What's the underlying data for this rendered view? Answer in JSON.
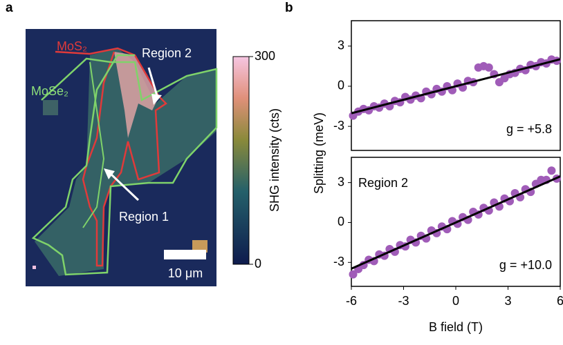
{
  "chart_data": [
    {
      "type": "image",
      "panel_label": "a",
      "annotations": {
        "mos2": "MoS₂",
        "mose2": "MoSe₂",
        "region2": "Region 2",
        "region1": "Region 1",
        "scalebar": "10 μm"
      },
      "colorbar": {
        "label": "SHG intensity (cts)",
        "lim": [
          0,
          300
        ],
        "ticks": [
          0,
          300
        ]
      }
    },
    {
      "type": "scatter",
      "panel_label": "b",
      "color": "#a05cb8",
      "xlim": [
        -6,
        6
      ],
      "ylim": [
        -4.8,
        4.9
      ],
      "yticks": [
        -3,
        0,
        3
      ],
      "annotation": "g = +5.8",
      "x": [
        -5.9,
        -5.6,
        -5.3,
        -5.0,
        -4.7,
        -4.4,
        -4.1,
        -3.8,
        -3.5,
        -3.2,
        -2.9,
        -2.6,
        -2.3,
        -2.0,
        -1.7,
        -1.4,
        -1.1,
        -0.8,
        -0.5,
        -0.2,
        0.1,
        0.4,
        0.7,
        1.0,
        1.3,
        1.6,
        1.9,
        2.2,
        2.5,
        2.8,
        3.1,
        3.4,
        3.7,
        4.0,
        4.3,
        4.6,
        4.9,
        5.2,
        5.5,
        5.8
      ],
      "values": [
        -2.2,
        -1.9,
        -1.7,
        -1.8,
        -1.5,
        -1.6,
        -1.3,
        -1.5,
        -1.1,
        -1.2,
        -0.8,
        -1.0,
        -0.7,
        -0.9,
        -0.4,
        -0.6,
        -0.2,
        -0.4,
        0.0,
        -0.3,
        0.2,
        -0.1,
        0.4,
        0.3,
        1.4,
        1.5,
        1.4,
        0.9,
        0.3,
        0.6,
        0.9,
        1.0,
        1.3,
        1.2,
        1.6,
        1.5,
        1.8,
        1.7,
        2.0,
        1.9
      ],
      "fit": {
        "color": "#000000",
        "x": [
          -6,
          6
        ],
        "values": [
          -2.02,
          2.02
        ]
      }
    },
    {
      "type": "scatter",
      "color": "#a05cb8",
      "xlim": [
        -6,
        6
      ],
      "ylim": [
        -4.8,
        4.9
      ],
      "yticks": [
        -3,
        0,
        3
      ],
      "xticks": [
        -6,
        -3,
        0,
        3,
        6
      ],
      "xlabel": "B field (T)",
      "ylabel": "Splitting (meV)",
      "annotation": "g = +10.0",
      "region_label": "Region 2",
      "x": [
        -5.9,
        -5.6,
        -5.3,
        -5.0,
        -4.7,
        -4.4,
        -4.1,
        -3.8,
        -3.5,
        -3.2,
        -2.9,
        -2.6,
        -2.3,
        -2.0,
        -1.7,
        -1.4,
        -1.1,
        -0.8,
        -0.5,
        -0.2,
        0.1,
        0.4,
        0.7,
        1.0,
        1.3,
        1.6,
        1.9,
        2.2,
        2.5,
        2.8,
        3.1,
        3.4,
        3.7,
        4.0,
        4.3,
        4.6,
        4.9,
        5.2,
        5.5,
        5.8
      ],
      "values": [
        -3.9,
        -3.5,
        -3.2,
        -2.8,
        -2.9,
        -2.4,
        -2.5,
        -2.0,
        -2.2,
        -1.7,
        -1.8,
        -1.3,
        -1.5,
        -1.0,
        -1.2,
        -0.6,
        -0.8,
        -0.3,
        -0.5,
        0.1,
        -0.1,
        0.4,
        0.2,
        0.8,
        0.6,
        1.1,
        0.9,
        1.5,
        1.2,
        1.8,
        1.6,
        2.2,
        1.9,
        2.5,
        2.3,
        2.9,
        3.2,
        3.2,
        3.9,
        3.3
      ],
      "fit": {
        "color": "#000000",
        "x": [
          -6,
          6
        ],
        "values": [
          -3.47,
          3.47
        ]
      }
    }
  ]
}
